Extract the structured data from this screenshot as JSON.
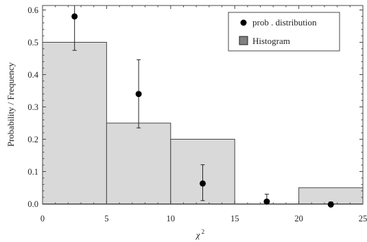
{
  "chart_data": {
    "type": "bar",
    "title": "",
    "xlabel": "χ",
    "xlabel_sup": "2",
    "ylabel": "Probability / Frequency",
    "xlim": [
      0,
      25
    ],
    "ylim": [
      0,
      0.62
    ],
    "x_ticks": [
      0,
      5,
      10,
      15,
      20,
      25
    ],
    "y_ticks": [
      0.0,
      0.1,
      0.2,
      0.3,
      0.4,
      0.5,
      0.6
    ],
    "y_tick_labels": [
      "0.0",
      "0.1",
      "0.2",
      "0.3",
      "0.4",
      "0.5",
      "0.6"
    ],
    "grid": false,
    "legend_position": "top-right",
    "histogram": {
      "name": "Histogram",
      "color": "#808080",
      "bins": [
        {
          "x0": 0,
          "x1": 5,
          "value": 0.5
        },
        {
          "x0": 5,
          "x1": 10,
          "value": 0.25
        },
        {
          "x0": 10,
          "x1": 15,
          "value": 0.2
        },
        {
          "x0": 15,
          "x1": 20,
          "value": 0.0
        },
        {
          "x0": 20,
          "x1": 25,
          "value": 0.05
        }
      ]
    },
    "points": {
      "name": "prob . distribution",
      "color": "#000000",
      "x": [
        2.5,
        7.5,
        12.5,
        17.5,
        22.5
      ],
      "y": [
        0.58,
        0.34,
        0.063,
        0.007,
        -0.002
      ],
      "err_low": [
        0.475,
        0.235,
        0.01,
        0.0,
        -0.006
      ],
      "err_high": [
        0.62,
        0.446,
        0.121,
        0.03,
        0.006
      ]
    }
  }
}
